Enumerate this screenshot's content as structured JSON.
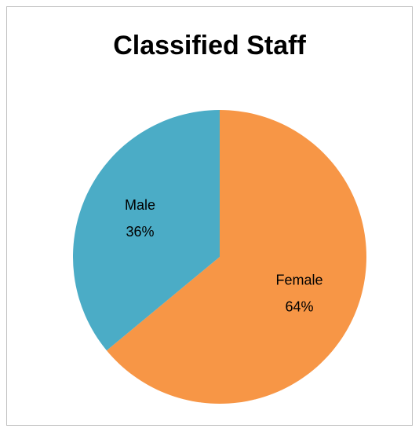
{
  "chart_data": {
    "type": "pie",
    "title": "Classified Staff",
    "categories": [
      "Female",
      "Male"
    ],
    "values": [
      64,
      36
    ],
    "value_labels": [
      "64%",
      "36%"
    ],
    "colors": [
      "#f79646",
      "#4bacc6"
    ]
  }
}
